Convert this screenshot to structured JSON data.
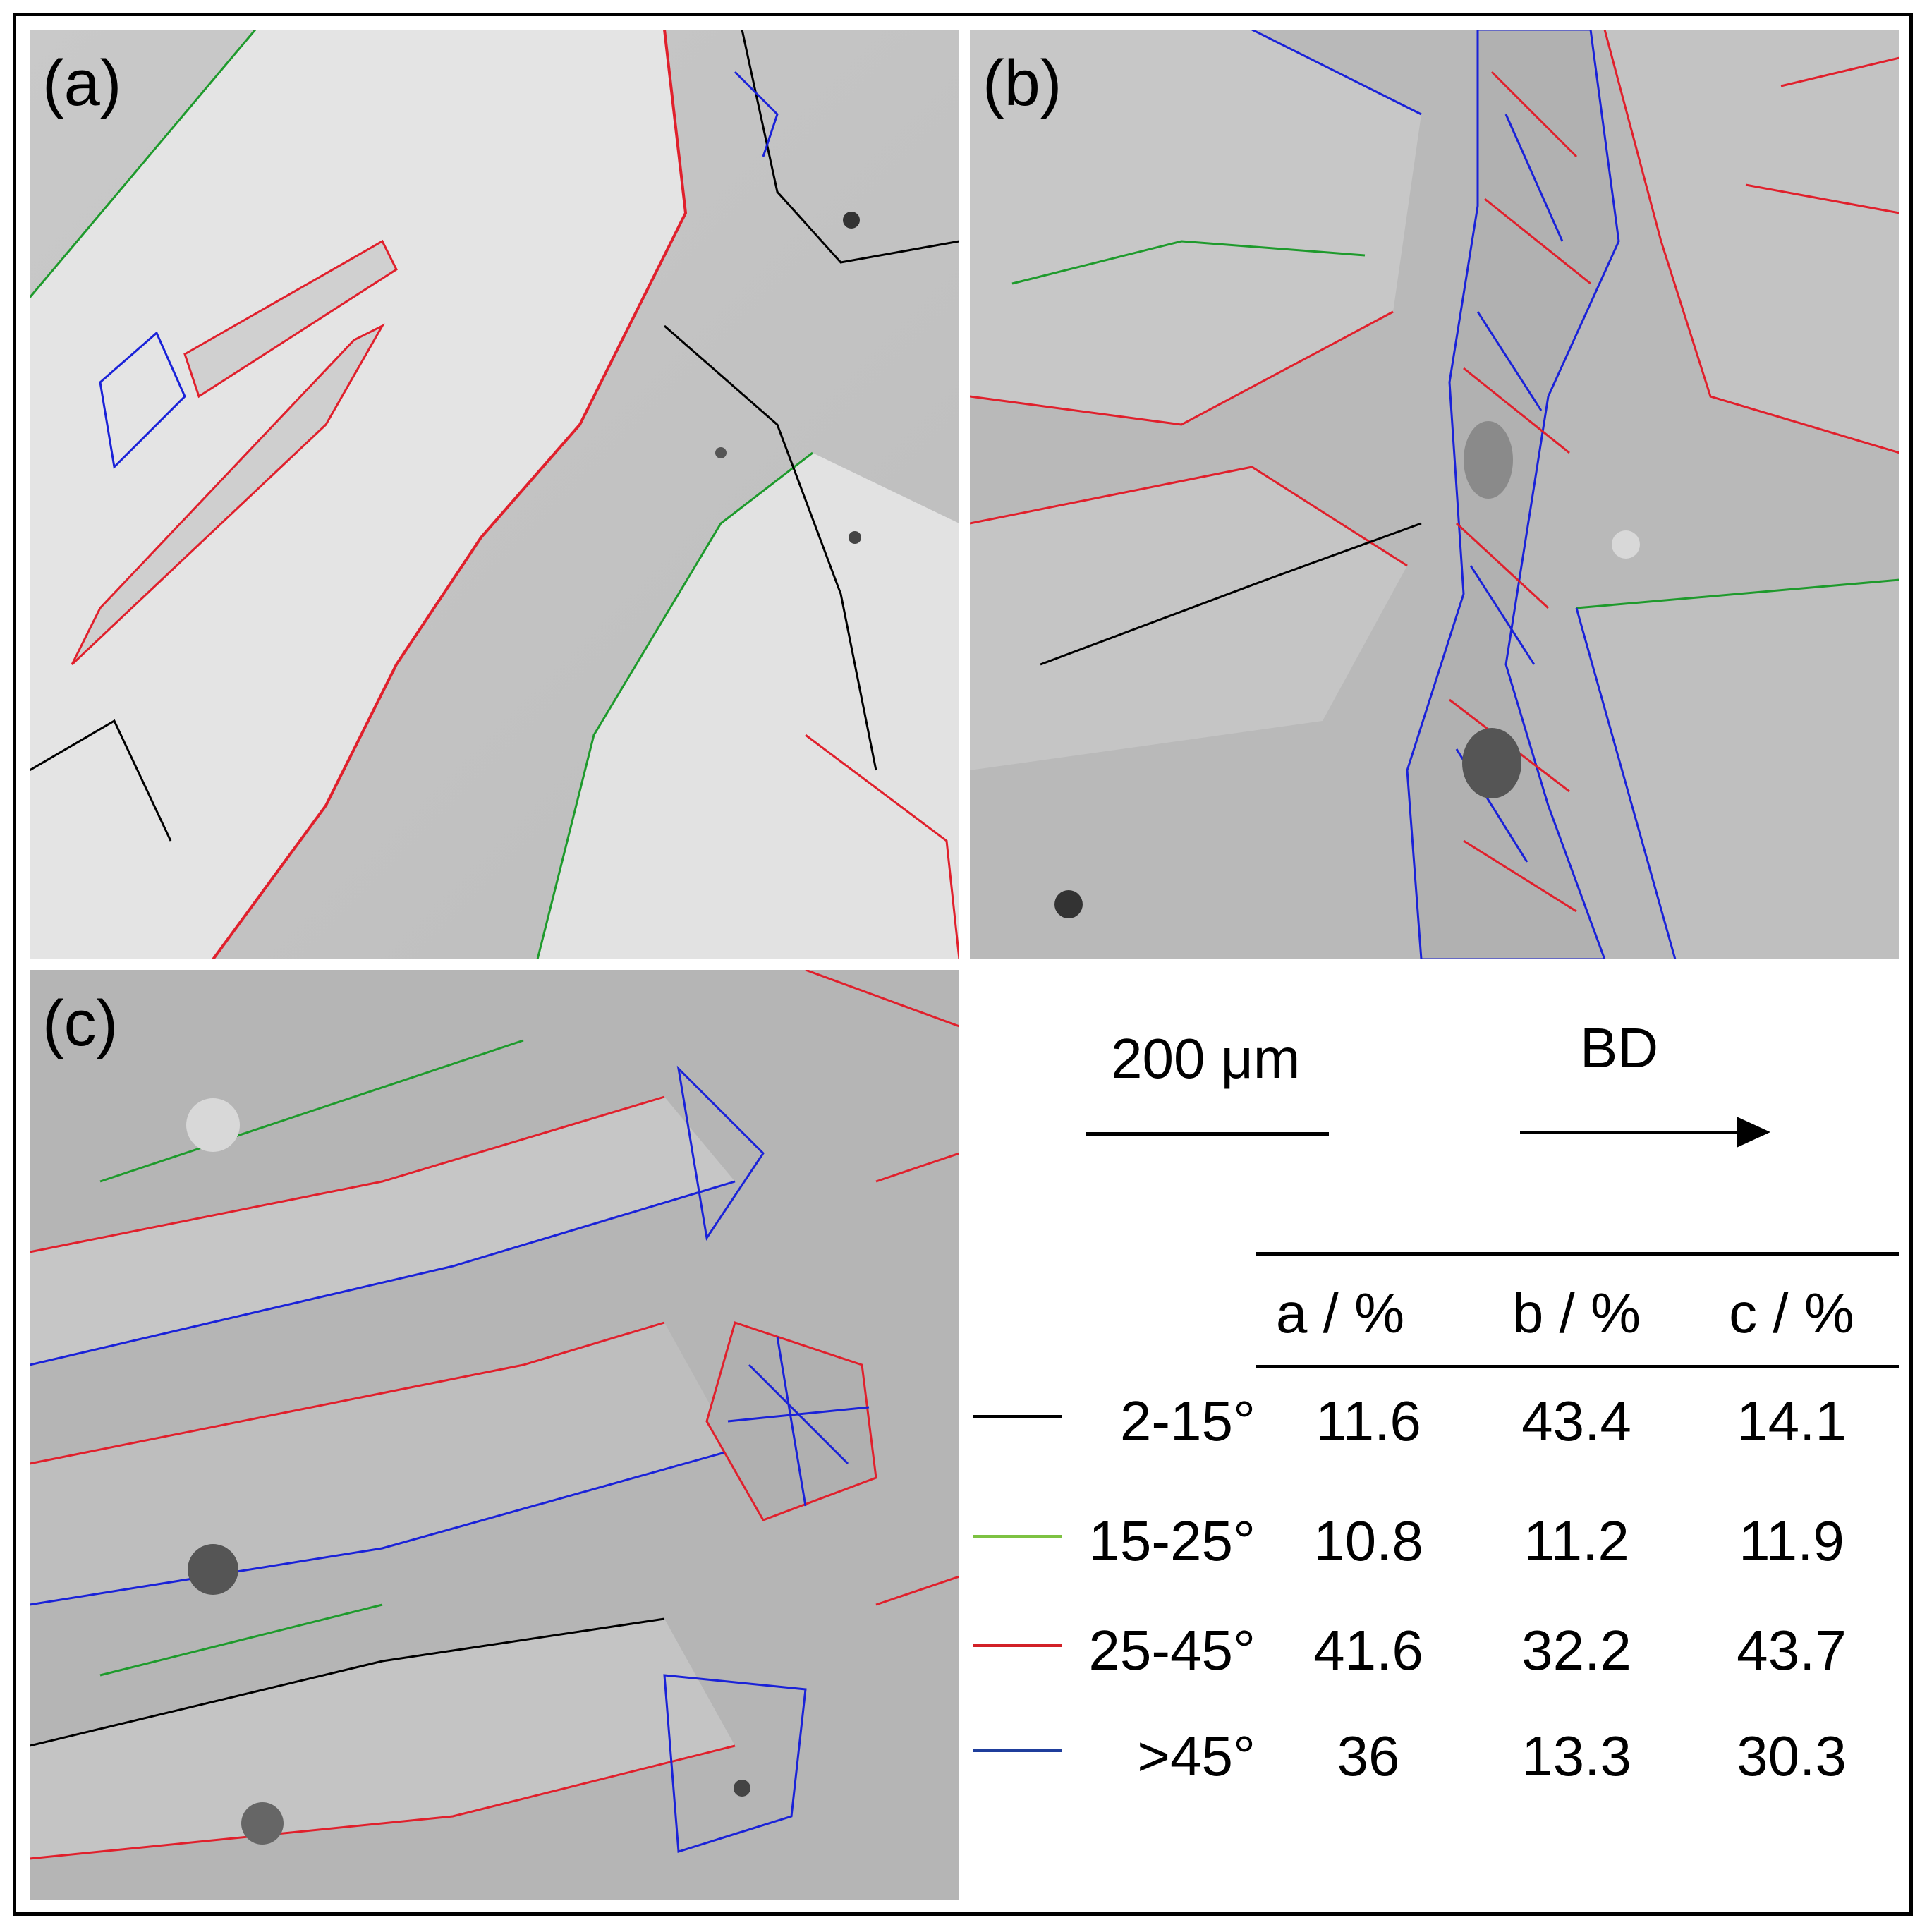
{
  "panels": [
    {
      "label": "(a)"
    },
    {
      "label": "(b)"
    },
    {
      "label": "(c)"
    }
  ],
  "scale_bar": {
    "label": "200 μm"
  },
  "direction": {
    "label": "BD"
  },
  "table": {
    "headers": [
      "a / %",
      "b / %",
      "c / %"
    ],
    "rows": [
      {
        "range": "2-15°",
        "color": "#000000",
        "values": [
          "11.6",
          "43.4",
          "14.1"
        ]
      },
      {
        "range": "15-25°",
        "color": "#7dc242",
        "values": [
          "10.8",
          "11.2",
          "11.9"
        ]
      },
      {
        "range": "25-45°",
        "color": "#d22027",
        "values": [
          "41.6",
          "32.2",
          "43.7"
        ]
      },
      {
        "range": ">45°",
        "color": "#1f3e9c",
        "values": [
          "36",
          "13.3",
          "30.3"
        ]
      }
    ]
  },
  "boundary_colors": {
    "low": "#000000",
    "mid": "#1e9a2c",
    "high": "#e0202c",
    "very_high": "#1a22d8"
  }
}
